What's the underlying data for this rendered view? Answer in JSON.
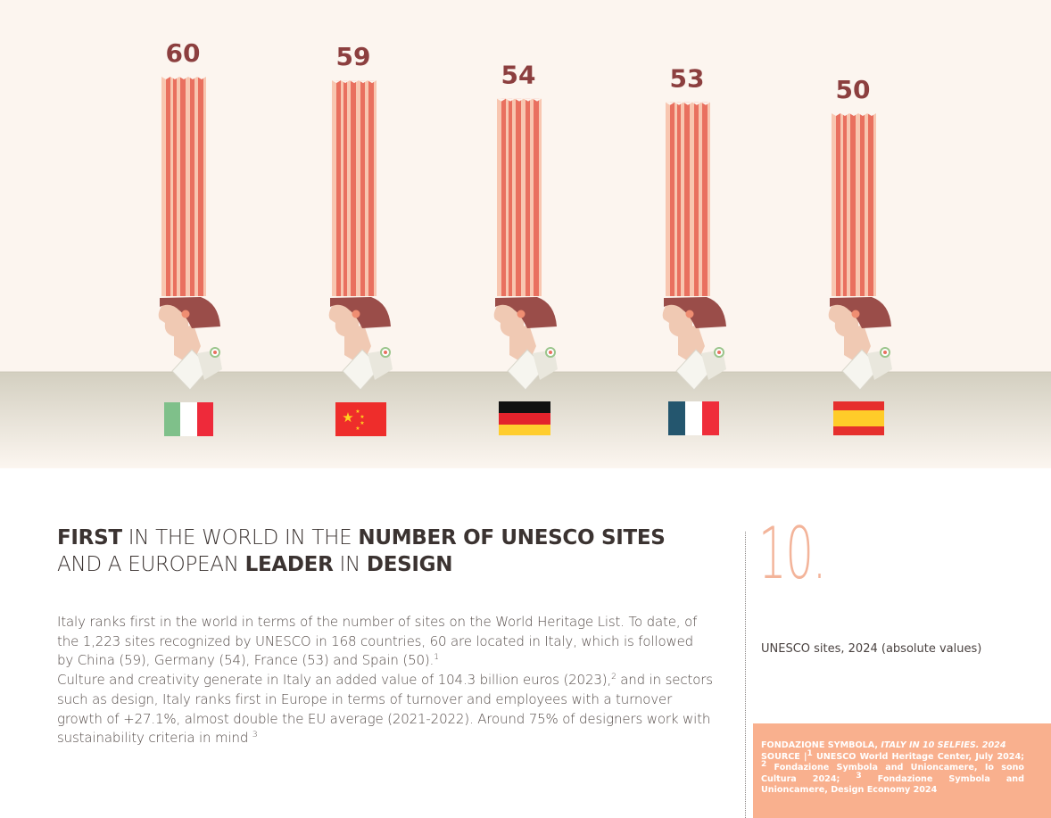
{
  "chart_data": {
    "type": "bar",
    "title": "UNESCO sites, 2024 (absolute values)",
    "categories": [
      "Italy",
      "China",
      "Germany",
      "France",
      "Spain"
    ],
    "values": [
      60,
      59,
      54,
      53,
      50
    ],
    "value_labels": [
      "60",
      "59",
      "54",
      "53",
      "50"
    ],
    "xlabel": "",
    "ylabel": "",
    "grid": false,
    "legend": "none"
  },
  "colors": {
    "bar_dark": "#e9705f",
    "bar_light": "#f8c6b0",
    "value_label": "#8c3f3f",
    "hair": "#9a4d49",
    "skin": "#f0c9b3",
    "background": "#fcf5ef",
    "floor": "#d8d4c6",
    "number_accent": "#f3b49a",
    "source_box": "#f9b08e"
  },
  "headline": {
    "line1_bold1": "FIRST",
    "line1_light1": " IN THE WORLD IN THE ",
    "line1_bold2": "NUMBER OF UNESCO SITES",
    "line2_light1": "AND A EUROPEAN ",
    "line2_bold1": "LEADER",
    "line2_light2": " IN ",
    "line2_bold2": "DESIGN"
  },
  "body": {
    "p1": "Italy ranks first in the world in terms of the number of sites on the World Heritage List. To date, of the 1,223 sites recognized by UNESCO in 168 countries, 60 are located in Italy, which is followed by China (59), Germany (54), France (53) and Spain (50).",
    "p1_sup": "1",
    "p2a": "Culture and creativity generate in Italy an added value of 104.3 billion euros (2023),",
    "p2_sup": "2",
    "p2b": " and in sectors such as design, Italy ranks first in Europe in terms of turnover and employees with a turnover growth of +27.1%, almost double the EU average (2021-2022). Around 75% of designers work with sustainability criteria in mind ",
    "p2_sup2": "3"
  },
  "section_number": "10.",
  "caption": "UNESCO sites, 2024 (absolute values)",
  "source": {
    "publisher": "FONDAZIONE SYMBOLA, ",
    "title": "ITALY IN 10 SELFIES. 2024",
    "line2": "SOURCE |",
    "sup1": "1",
    "text1": " UNESCO World Heritage Center, July 2024; ",
    "sup2": "2",
    "text2": " Fondazione Symbola and Unioncamere, Io sono Cultura 2024; ",
    "sup3": "3",
    "text3": " Fondazione Symbola and Unioncamere, Design Economy 2024"
  }
}
